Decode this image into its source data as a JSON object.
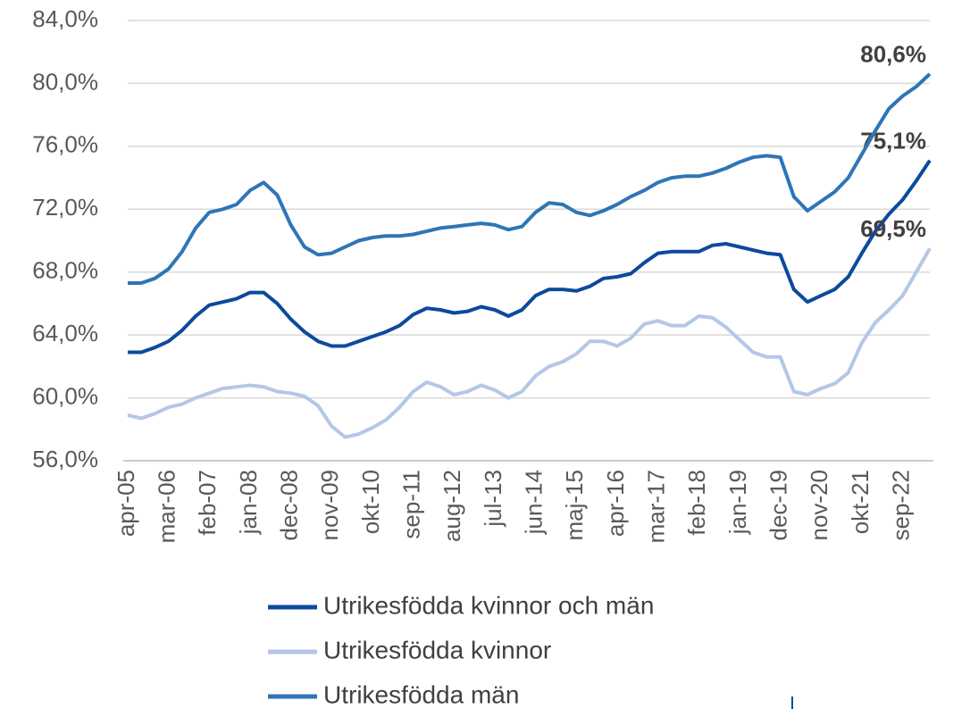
{
  "chart_data": {
    "type": "line",
    "categories": [
      "apr-05",
      null,
      null,
      "mar-06",
      null,
      null,
      "feb-07",
      null,
      null,
      "jan-08",
      null,
      null,
      "dec-08",
      null,
      null,
      "nov-09",
      null,
      null,
      "okt-10",
      null,
      null,
      "sep-11",
      null,
      null,
      "aug-12",
      null,
      null,
      "jul-13",
      null,
      null,
      "jun-14",
      null,
      null,
      "maj-15",
      null,
      null,
      "apr-16",
      null,
      null,
      "mar-17",
      null,
      null,
      "feb-18",
      null,
      null,
      "jan-19",
      null,
      null,
      "dec-19",
      null,
      null,
      "nov-20",
      null,
      null,
      "okt-21",
      null,
      null,
      "sep-22",
      null,
      null
    ],
    "series": [
      {
        "name": "Utrikesfödda kvinnor och män",
        "color": "#0c4a9c",
        "values": [
          62.9,
          62.9,
          63.2,
          63.6,
          64.3,
          65.2,
          65.9,
          66.1,
          66.3,
          66.7,
          66.7,
          66.0,
          65.0,
          64.2,
          63.6,
          63.3,
          63.3,
          63.6,
          63.9,
          64.2,
          64.6,
          65.3,
          65.7,
          65.6,
          65.4,
          65.5,
          65.8,
          65.6,
          65.2,
          65.6,
          66.5,
          66.9,
          66.9,
          66.8,
          67.1,
          67.6,
          67.7,
          67.9,
          68.6,
          69.2,
          69.3,
          69.3,
          69.3,
          69.7,
          69.8,
          69.6,
          69.4,
          69.2,
          69.1,
          66.9,
          66.1,
          66.5,
          66.9,
          67.7,
          69.2,
          70.6,
          71.7,
          72.6,
          73.8,
          75.1
        ],
        "value_labels": [
          null,
          null,
          null,
          null,
          null,
          null,
          null,
          null,
          null,
          null,
          null,
          null,
          null,
          null,
          null,
          null,
          null,
          null,
          null,
          null,
          null,
          null,
          null,
          null,
          null,
          null,
          null,
          null,
          null,
          null,
          null,
          null,
          null,
          null,
          null,
          null,
          null,
          null,
          null,
          null,
          null,
          null,
          null,
          null,
          null,
          null,
          null,
          null,
          null,
          null,
          null,
          null,
          null,
          null,
          null,
          null,
          null,
          null,
          null,
          "75,1%"
        ]
      },
      {
        "name": "Utrikesfödda kvinnor",
        "color": "#b4c7e7",
        "values": [
          58.9,
          58.7,
          59.0,
          59.4,
          59.6,
          60.0,
          60.3,
          60.6,
          60.7,
          60.8,
          60.7,
          60.4,
          60.3,
          60.1,
          59.5,
          58.2,
          57.5,
          57.7,
          58.1,
          58.6,
          59.4,
          60.4,
          61.0,
          60.7,
          60.2,
          60.4,
          60.8,
          60.5,
          60.0,
          60.4,
          61.4,
          62.0,
          62.3,
          62.8,
          63.6,
          63.6,
          63.3,
          63.8,
          64.7,
          64.9,
          64.6,
          64.6,
          65.2,
          65.1,
          64.5,
          63.7,
          62.9,
          62.6,
          62.6,
          60.4,
          60.2,
          60.6,
          60.9,
          61.6,
          63.5,
          64.8,
          65.6,
          66.5,
          68.0,
          69.5
        ],
        "value_labels": [
          null,
          null,
          null,
          null,
          null,
          null,
          null,
          null,
          null,
          null,
          null,
          null,
          null,
          null,
          null,
          null,
          null,
          null,
          null,
          null,
          null,
          null,
          null,
          null,
          null,
          null,
          null,
          null,
          null,
          null,
          null,
          null,
          null,
          null,
          null,
          null,
          null,
          null,
          null,
          null,
          null,
          null,
          null,
          null,
          null,
          null,
          null,
          null,
          null,
          null,
          null,
          null,
          null,
          null,
          null,
          null,
          null,
          null,
          null,
          "69,5%"
        ]
      },
      {
        "name": "Utrikesfödda män",
        "color": "#2e75b6",
        "values": [
          67.3,
          67.3,
          67.6,
          68.2,
          69.3,
          70.8,
          71.8,
          72.0,
          72.3,
          73.2,
          73.7,
          72.9,
          71.0,
          69.6,
          69.1,
          69.2,
          69.6,
          70.0,
          70.2,
          70.3,
          70.3,
          70.4,
          70.6,
          70.8,
          70.9,
          71.0,
          71.1,
          71.0,
          70.7,
          70.9,
          71.8,
          72.4,
          72.3,
          71.8,
          71.6,
          71.9,
          72.3,
          72.8,
          73.2,
          73.7,
          74.0,
          74.1,
          74.1,
          74.3,
          74.6,
          75.0,
          75.3,
          75.4,
          75.3,
          72.8,
          71.9,
          72.5,
          73.1,
          74.0,
          75.5,
          77.0,
          78.4,
          79.2,
          79.8,
          80.6
        ],
        "value_labels": [
          null,
          null,
          null,
          null,
          null,
          null,
          null,
          null,
          null,
          null,
          null,
          null,
          null,
          null,
          null,
          null,
          null,
          null,
          null,
          null,
          null,
          null,
          null,
          null,
          null,
          null,
          null,
          null,
          null,
          null,
          null,
          null,
          null,
          null,
          null,
          null,
          null,
          null,
          null,
          null,
          null,
          null,
          null,
          null,
          null,
          null,
          null,
          null,
          null,
          null,
          null,
          null,
          null,
          null,
          null,
          null,
          null,
          null,
          null,
          "80,6%"
        ]
      }
    ],
    "ylim": [
      56,
      84
    ],
    "yticks": [
      {
        "value": 56,
        "label": "56,0%"
      },
      {
        "value": 60,
        "label": "60,0%"
      },
      {
        "value": 64,
        "label": "64,0%"
      },
      {
        "value": 68,
        "label": "68,0%"
      },
      {
        "value": 72,
        "label": "72,0%"
      },
      {
        "value": 76,
        "label": "76,0%"
      },
      {
        "value": 80,
        "label": "80,0%"
      },
      {
        "value": 84,
        "label": "84,0%"
      }
    ],
    "grid": true,
    "legend": "bottom"
  }
}
